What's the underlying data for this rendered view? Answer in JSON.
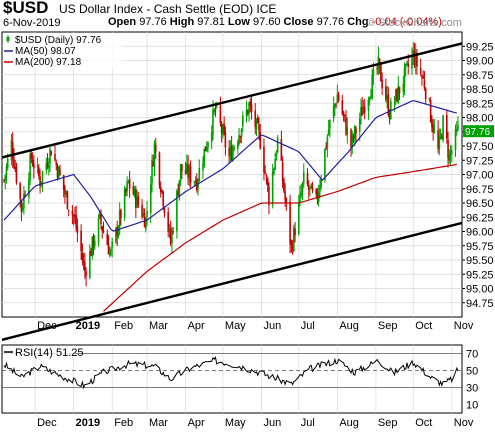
{
  "header": {
    "ticker": "$USD",
    "title": "US Dollar Index - Cash Settle (EOD)",
    "exchange": "ICE",
    "date": "6-Nov-2019",
    "open_label": "Open",
    "open": "97.76",
    "high_label": "High",
    "high": "97.81",
    "low_label": "Low",
    "low": "97.60",
    "close_label": "Close",
    "close": "97.76",
    "chg_label": "Chg",
    "chg": "-0.04 (-0.04%)",
    "brand": "© StockCharts.com"
  },
  "colors": {
    "price_up": "#00a000",
    "price_down": "#c00000",
    "ma50": "#2020a0",
    "ma200": "#c00000",
    "channel": "#000000",
    "rsi": "#000000",
    "grid": "#d9d9d9"
  },
  "chart_data": [
    {
      "type": "ohlc",
      "legend": [
        {
          "label": "$USD (Daily) 97.76",
          "color": "#00a000",
          "icon": "candlestick-icon"
        },
        {
          "label": "MA(50) 98.07",
          "color": "#2020a0",
          "icon": "line-icon"
        },
        {
          "label": "MA(200) 97.18",
          "color": "#c00000",
          "icon": "line-icon"
        }
      ],
      "x_ticks": [
        "Dec",
        "2019",
        "Feb",
        "Mar",
        "Apr",
        "May",
        "Jun",
        "Jul",
        "Aug",
        "Sep",
        "Oct",
        "Nov"
      ],
      "y_ticks": [
        "94.75",
        "95.00",
        "95.25",
        "95.50",
        "95.75",
        "96.00",
        "96.25",
        "96.50",
        "96.75",
        "97.00",
        "97.25",
        "97.50",
        "97.75",
        "98.00",
        "98.25",
        "98.50",
        "98.75",
        "99.00",
        "99.25"
      ],
      "ylim": [
        94.5,
        99.5
      ],
      "axis_position": "right",
      "grid": true,
      "last_close_label": "97.76",
      "series_points": {
        "close": [
          [
            "2018-11-06",
            96.9
          ],
          [
            "2018-11-12",
            97.55
          ],
          [
            "2018-11-20",
            96.4
          ],
          [
            "2018-11-28",
            97.3
          ],
          [
            "2018-12-05",
            96.9
          ],
          [
            "2018-12-14",
            97.45
          ],
          [
            "2018-12-26",
            96.6
          ],
          [
            "2019-01-02",
            96.2
          ],
          [
            "2019-01-10",
            95.3
          ],
          [
            "2019-01-22",
            96.2
          ],
          [
            "2019-01-31",
            95.6
          ],
          [
            "2019-02-14",
            96.85
          ],
          [
            "2019-02-28",
            96.2
          ],
          [
            "2019-03-07",
            97.5
          ],
          [
            "2019-03-20",
            95.8
          ],
          [
            "2019-03-28",
            97.1
          ],
          [
            "2019-04-10",
            96.9
          ],
          [
            "2019-04-25",
            98.15
          ],
          [
            "2019-05-06",
            97.3
          ],
          [
            "2019-05-22",
            98.2
          ],
          [
            "2019-05-31",
            97.6
          ],
          [
            "2019-06-07",
            96.6
          ],
          [
            "2019-06-14",
            97.6
          ],
          [
            "2019-06-25",
            95.7
          ],
          [
            "2019-07-05",
            96.9
          ],
          [
            "2019-07-15",
            96.5
          ],
          [
            "2019-07-25",
            97.8
          ],
          [
            "2019-08-01",
            98.4
          ],
          [
            "2019-08-12",
            97.5
          ],
          [
            "2019-08-22",
            98.2
          ],
          [
            "2019-09-03",
            98.9
          ],
          [
            "2019-09-12",
            98.1
          ],
          [
            "2019-09-20",
            98.5
          ],
          [
            "2019-10-01",
            99.1
          ],
          [
            "2019-10-10",
            98.6
          ],
          [
            "2019-10-21",
            97.4
          ],
          [
            "2019-10-25",
            97.9
          ],
          [
            "2019-10-30",
            97.3
          ],
          [
            "2019-11-06",
            97.76
          ]
        ],
        "ma50": [
          [
            "2018-11-06",
            96.2
          ],
          [
            "2018-12-01",
            96.8
          ],
          [
            "2019-01-01",
            97.0
          ],
          [
            "2019-01-15",
            96.6
          ],
          [
            "2019-02-01",
            96.0
          ],
          [
            "2019-03-01",
            96.2
          ],
          [
            "2019-04-01",
            96.7
          ],
          [
            "2019-05-01",
            97.1
          ],
          [
            "2019-06-01",
            97.7
          ],
          [
            "2019-07-01",
            97.4
          ],
          [
            "2019-07-20",
            96.9
          ],
          [
            "2019-08-10",
            97.4
          ],
          [
            "2019-09-01",
            98.0
          ],
          [
            "2019-10-01",
            98.3
          ],
          [
            "2019-11-06",
            98.07
          ]
        ],
        "ma200": [
          [
            "2019-01-25",
            94.6
          ],
          [
            "2019-03-01",
            95.3
          ],
          [
            "2019-04-01",
            95.8
          ],
          [
            "2019-05-01",
            96.2
          ],
          [
            "2019-06-01",
            96.5
          ],
          [
            "2019-07-01",
            96.5
          ],
          [
            "2019-08-01",
            96.7
          ],
          [
            "2019-09-01",
            96.95
          ],
          [
            "2019-10-01",
            97.05
          ],
          [
            "2019-11-06",
            97.18
          ]
        ],
        "channel_upper": [
          [
            "2018-11-06",
            97.3
          ],
          [
            "2019-11-06",
            99.3
          ]
        ],
        "channel_lower": [
          [
            "2018-11-06",
            94.1
          ],
          [
            "2019-11-06",
            96.15
          ]
        ]
      }
    },
    {
      "type": "line",
      "legend": [
        {
          "label": "RSI(14) 51.25",
          "color": "#000000",
          "icon": "line-icon"
        }
      ],
      "x_ticks": [
        "Dec",
        "2019",
        "Feb",
        "Mar",
        "Apr",
        "May",
        "Jun",
        "Jul",
        "Aug",
        "Sep",
        "Oct",
        "Nov"
      ],
      "y_ticks": [
        "70",
        "50",
        "30",
        "10"
      ],
      "ylim": [
        0,
        80
      ],
      "reference_lines": [
        70,
        50,
        30
      ],
      "grid": true,
      "series_points": {
        "rsi": [
          [
            "2018-11-06",
            57
          ],
          [
            "2018-11-20",
            42
          ],
          [
            "2018-12-05",
            55
          ],
          [
            "2018-12-20",
            45
          ],
          [
            "2019-01-10",
            32
          ],
          [
            "2019-01-25",
            48
          ],
          [
            "2019-02-15",
            58
          ],
          [
            "2019-03-07",
            55
          ],
          [
            "2019-03-20",
            40
          ],
          [
            "2019-04-05",
            53
          ],
          [
            "2019-04-25",
            62
          ],
          [
            "2019-05-15",
            55
          ],
          [
            "2019-06-05",
            45
          ],
          [
            "2019-06-25",
            34
          ],
          [
            "2019-07-10",
            52
          ],
          [
            "2019-08-01",
            62
          ],
          [
            "2019-08-15",
            48
          ],
          [
            "2019-09-03",
            62
          ],
          [
            "2019-09-15",
            47
          ],
          [
            "2019-10-01",
            60
          ],
          [
            "2019-10-15",
            42
          ],
          [
            "2019-10-25",
            34
          ],
          [
            "2019-11-01",
            40
          ],
          [
            "2019-11-06",
            51.25
          ]
        ]
      }
    }
  ]
}
